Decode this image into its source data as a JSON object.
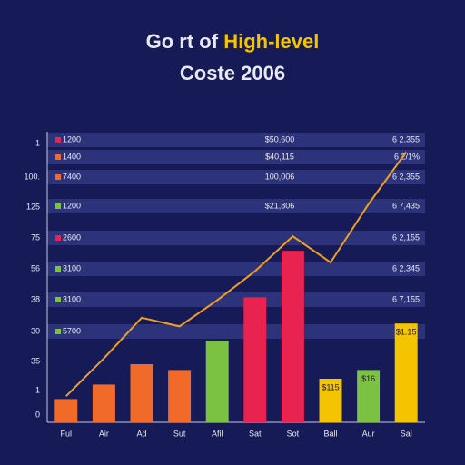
{
  "chart_data": {
    "type": "bar",
    "title": "Go rt of",
    "title_highlight": "High-level",
    "subtitle": "Coste 2006",
    "categories": [
      "Ful",
      "Air",
      "Ad",
      "Sut",
      "Afil",
      "Sat",
      "Sot",
      "Ball",
      "Aur",
      "Sal"
    ],
    "values": [
      8,
      13,
      20,
      18,
      28,
      43,
      59,
      15,
      18,
      34
    ],
    "colors": [
      "#f26a2a",
      "#f26a2a",
      "#f26a2a",
      "#f26a2a",
      "#7cc242",
      "#e8234f",
      "#e8234f",
      "#f5c400",
      "#7cc242",
      "#f5c400"
    ],
    "line": {
      "color": "#f0a020",
      "values": [
        9,
        22,
        36,
        33,
        42,
        52,
        64,
        55,
        75,
        93
      ]
    },
    "bar_notes": [
      {
        "index": 7,
        "text": "$115"
      },
      {
        "index": 8,
        "text": "$16"
      },
      {
        "index": 9,
        "text": "$1.15"
      }
    ],
    "ylim": [
      0,
      100
    ],
    "y_axis_labels": [
      "1",
      "100.",
      "125",
      "75",
      "56",
      "38",
      "30",
      "35",
      "1",
      "0"
    ],
    "rows": [
      {
        "left": "1200",
        "mid": "$50,600",
        "right": "6 2,355"
      },
      {
        "left": "1400",
        "mid": "$40,115",
        "right": "6 2/1%"
      },
      {
        "left": "7400",
        "mid": "100,006",
        "right": "6 2,355"
      },
      {
        "left": "1200",
        "mid": "$21,806",
        "right": "6 7,435"
      },
      {
        "left": "2600",
        "mid": "",
        "right": "6 2,155"
      },
      {
        "left": "3100",
        "mid": "",
        "right": "6 2,345"
      },
      {
        "left": "3100",
        "mid": "",
        "right": "6 7,155"
      },
      {
        "left": "5700",
        "mid": "",
        "right": ""
      }
    ]
  }
}
